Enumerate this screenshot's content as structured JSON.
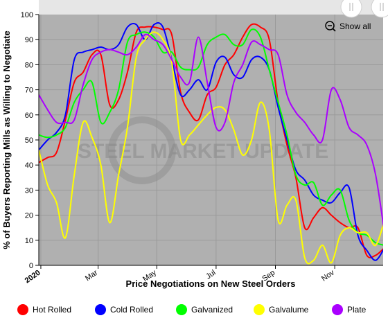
{
  "chart_data": {
    "type": "line",
    "xlabel": "Price Negotiations on New Steel Orders",
    "ylabel": "% of Buyers Reporting Mills as Willing to Negotiate",
    "ylim": [
      0,
      100
    ],
    "xlim": [
      0,
      50.5
    ],
    "y_ticks": [
      0,
      10,
      20,
      30,
      40,
      50,
      60,
      70,
      80,
      90,
      100
    ],
    "x_ticks": [
      {
        "label": "2020",
        "x": 0.3,
        "bold": true
      },
      {
        "label": "Mar",
        "x": 8.7
      },
      {
        "label": "May",
        "x": 17.3
      },
      {
        "label": "Jul",
        "x": 26.0
      },
      {
        "label": "Sep",
        "x": 34.7
      },
      {
        "label": "Nov",
        "x": 43.4
      }
    ],
    "grid": true,
    "legend_position": "bottom",
    "watermark": "STEEL MARKET UPDATE",
    "zoom_label": "Show all",
    "series": [
      {
        "name": "Hot Rolled",
        "color": "#ff0000",
        "values": [
          41,
          43,
          45,
          58,
          73,
          77,
          84,
          84,
          64,
          66,
          77,
          93,
          95,
          95,
          94,
          92,
          69,
          61,
          58,
          68,
          71,
          80,
          84,
          91,
          96,
          95,
          90,
          65,
          48,
          35,
          15,
          19,
          23,
          20,
          17,
          15,
          15,
          4,
          4,
          7
        ]
      },
      {
        "name": "Cold Rolled",
        "color": "#0000ff",
        "values": [
          46,
          50,
          53,
          60,
          82,
          85,
          86,
          87,
          86,
          88,
          95,
          96,
          90,
          96,
          95,
          82,
          68,
          70,
          74,
          70,
          81,
          83,
          76,
          75,
          82,
          83,
          78,
          63,
          50,
          38,
          34,
          28,
          26,
          25,
          29,
          31,
          12,
          6,
          2,
          7
        ]
      },
      {
        "name": "Galvanized",
        "color": "#00ff00",
        "values": [
          52,
          51,
          52,
          55,
          65,
          70,
          73,
          57,
          61,
          70,
          89,
          92,
          93,
          91,
          85,
          85,
          79,
          78,
          79,
          88,
          91,
          92,
          88,
          88,
          94,
          91,
          78,
          65,
          52,
          36,
          32,
          33,
          24,
          28,
          30,
          18,
          13,
          12,
          9,
          8
        ]
      },
      {
        "name": "Galvalume",
        "color": "#ffff00",
        "values": [
          46,
          32,
          25,
          11,
          36,
          57,
          51,
          40,
          17,
          36,
          55,
          83,
          90,
          93,
          90,
          81,
          50,
          52,
          56,
          60,
          63,
          62,
          54,
          44,
          50,
          65,
          54,
          18,
          24,
          26,
          3,
          2,
          8,
          1,
          12,
          15,
          13,
          13,
          8,
          18
        ]
      },
      {
        "name": "Plate",
        "color": "#aa00ff",
        "values": [
          68,
          62,
          57,
          57,
          58,
          72,
          82,
          85,
          86,
          85,
          84,
          87,
          92,
          90,
          88,
          82,
          75,
          73,
          91,
          73,
          55,
          57,
          73,
          80,
          89,
          88,
          86,
          84,
          68,
          61,
          57,
          52,
          50,
          70,
          66,
          55,
          52,
          48,
          36,
          13
        ]
      }
    ]
  }
}
